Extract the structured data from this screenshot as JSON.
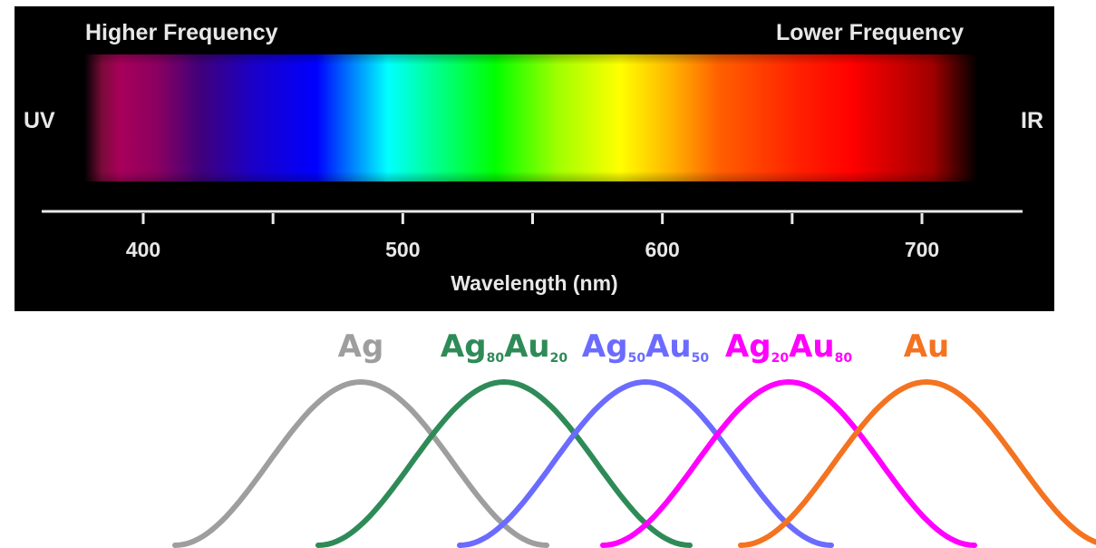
{
  "spectrum": {
    "high_frequency_label": "Higher Frequency",
    "low_frequency_label": "Lower Frequency",
    "uv_label": "UV",
    "ir_label": "IR",
    "axis_title": "Wavelength (nm)",
    "tick_labels": [
      "400",
      "500",
      "600",
      "700"
    ],
    "axis_range_nm": [
      400,
      700
    ],
    "minor_ticks_nm": [
      450,
      550,
      650
    ]
  },
  "alloys": [
    {
      "el1": "Ag",
      "sub1": "",
      "el2": "",
      "sub2": "",
      "color": "#9e9e9e"
    },
    {
      "el1": "Ag",
      "sub1": "80",
      "el2": "Au",
      "sub2": "20",
      "color": "#2e8b57"
    },
    {
      "el1": "Ag",
      "sub1": "50",
      "el2": "Au",
      "sub2": "50",
      "color": "#6b6bff"
    },
    {
      "el1": "Ag",
      "sub1": "20",
      "el2": "Au",
      "sub2": "80",
      "color": "#ff00ff"
    },
    {
      "el1": "Au",
      "sub1": "",
      "el2": "",
      "sub2": "",
      "color": "#f47320"
    }
  ]
}
